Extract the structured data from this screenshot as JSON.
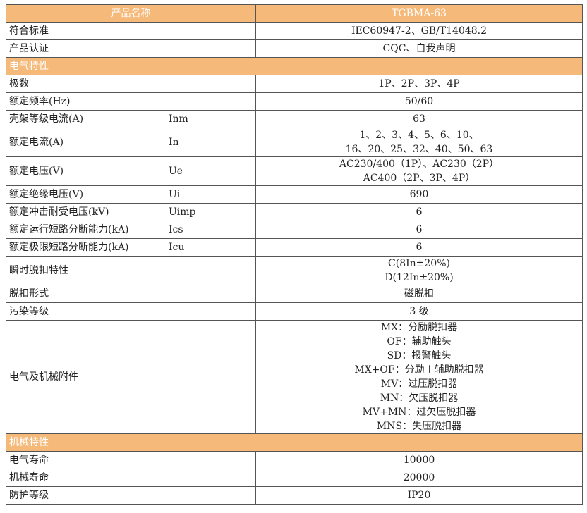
{
  "header": {
    "name": "产品名称",
    "model": "TGBMA-63"
  },
  "rows": [
    {
      "type": "row",
      "label": "符合标准",
      "lines": [
        "IEC60947-2、GB/T14048.2"
      ]
    },
    {
      "type": "row",
      "label": "产品认证",
      "lines": [
        "CQC、自我声明"
      ]
    },
    {
      "type": "section",
      "label": "电气特性"
    },
    {
      "type": "row",
      "label": "极数",
      "lines": [
        "1P、2P、3P、4P"
      ]
    },
    {
      "type": "row",
      "label": "额定频率(Hz)",
      "lines": [
        "50/60"
      ]
    },
    {
      "type": "row",
      "label": "壳架等级电流(A)",
      "symbol": "Inm",
      "lines": [
        "63"
      ]
    },
    {
      "type": "row",
      "label": "额定电流(A)",
      "symbol": "In",
      "lines": [
        "1、2、3、4、5、6、10、",
        "16、20、25、32、40、50、63"
      ]
    },
    {
      "type": "row",
      "label": "额定电压(V)",
      "symbol": "Ue",
      "lines": [
        "AC230/400（1P）、AC230（2P）",
        "AC400（2P、3P、4P）"
      ]
    },
    {
      "type": "row",
      "label": "额定绝缘电压(V)",
      "symbol": "Ui",
      "lines": [
        "690"
      ]
    },
    {
      "type": "row",
      "label": "额定冲击耐受电压(kV)",
      "symbol": "Uimp",
      "lines": [
        "6"
      ]
    },
    {
      "type": "row",
      "label": "额定运行短路分断能力(kA)",
      "symbol": "Ics",
      "lines": [
        "6"
      ]
    },
    {
      "type": "row",
      "label": "额定极限短路分断能力(kA)",
      "symbol": "Icu",
      "lines": [
        "6"
      ]
    },
    {
      "type": "row",
      "label": "瞬时脱扣特性",
      "lines": [
        "C(8In±20%)",
        "D(12In±20%)"
      ]
    },
    {
      "type": "row",
      "label": "脱扣形式",
      "lines": [
        "磁脱扣"
      ]
    },
    {
      "type": "row",
      "label": "污染等级",
      "lines": [
        "3 级"
      ]
    },
    {
      "type": "row",
      "label": "电气及机械附件",
      "lines": [
        "MX：分励脱扣器",
        "OF：辅助触头",
        "SD：报警触头",
        "MX+OF：分励＋辅助脱扣器",
        "MV：过压脱扣器",
        "MN：欠压脱扣器",
        "MV+MN：过欠压脱扣器",
        "MNS：失压脱扣器"
      ]
    },
    {
      "type": "section",
      "label": "机械特性"
    },
    {
      "type": "row",
      "label": "电气寿命",
      "lines": [
        "10000"
      ]
    },
    {
      "type": "row",
      "label": "机械寿命",
      "lines": [
        "20000"
      ]
    },
    {
      "type": "row",
      "label": "防护等级",
      "lines": [
        "IP20"
      ]
    }
  ],
  "colors": {
    "header_bg": "#f5b97a"
  }
}
